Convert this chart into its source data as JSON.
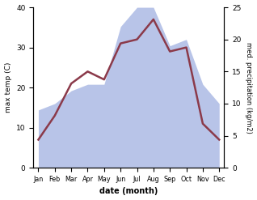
{
  "months": [
    "Jan",
    "Feb",
    "Mar",
    "Apr",
    "May",
    "Jun",
    "Jul",
    "Aug",
    "Sep",
    "Oct",
    "Nov",
    "Dec"
  ],
  "month_indices": [
    0,
    1,
    2,
    3,
    4,
    5,
    6,
    7,
    8,
    9,
    10,
    11
  ],
  "temp": [
    7,
    13,
    21,
    24,
    22,
    31,
    32,
    37,
    29,
    30,
    11,
    7
  ],
  "precip": [
    9,
    10,
    12,
    13,
    13,
    22,
    25,
    25,
    19,
    20,
    13,
    10
  ],
  "temp_color": "#8B3A4A",
  "precip_fill_color": "#b8c4e8",
  "temp_ylim": [
    0,
    40
  ],
  "precip_ylim": [
    0,
    25
  ],
  "xlabel": "date (month)",
  "ylabel_left": "max temp (C)",
  "ylabel_right": "med. precipitation (kg/m2)",
  "temp_lw": 1.8,
  "bg_color": "#ffffff"
}
